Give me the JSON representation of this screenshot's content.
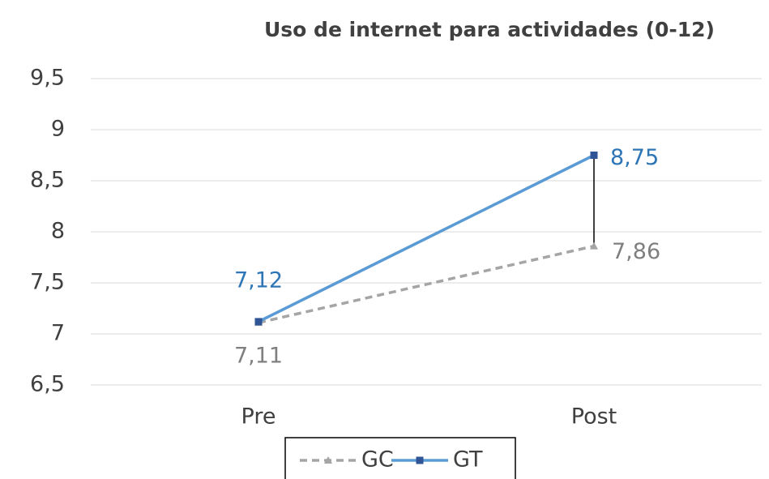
{
  "chart_data": {
    "type": "line",
    "title": "Uso de internet para actividades (0-12)",
    "categories": [
      "Pre",
      "Post"
    ],
    "series": [
      {
        "name": "GC",
        "color": "#a5a5a5",
        "label_color": "#7f7f7f",
        "marker": "triangle",
        "dashed": true,
        "values": [
          7.11,
          7.86
        ],
        "value_labels": [
          "7,11",
          "7,86"
        ]
      },
      {
        "name": "GT",
        "color": "#5b9bd5",
        "marker_color": "#2f5597",
        "label_color": "#2e75b6",
        "marker": "square",
        "dashed": false,
        "values": [
          7.12,
          8.75
        ],
        "value_labels": [
          "7,12",
          "8,75"
        ]
      }
    ],
    "ylim": [
      6.5,
      9.5
    ],
    "yticks": [
      {
        "value": 6.5,
        "label": "6,5"
      },
      7,
      {
        "value": 7.5,
        "label": "7,5"
      },
      8,
      {
        "value": 8.5,
        "label": "8,5"
      },
      9,
      {
        "value": 9.5,
        "label": "9,5"
      }
    ],
    "grid": true,
    "legend": "bottom"
  }
}
